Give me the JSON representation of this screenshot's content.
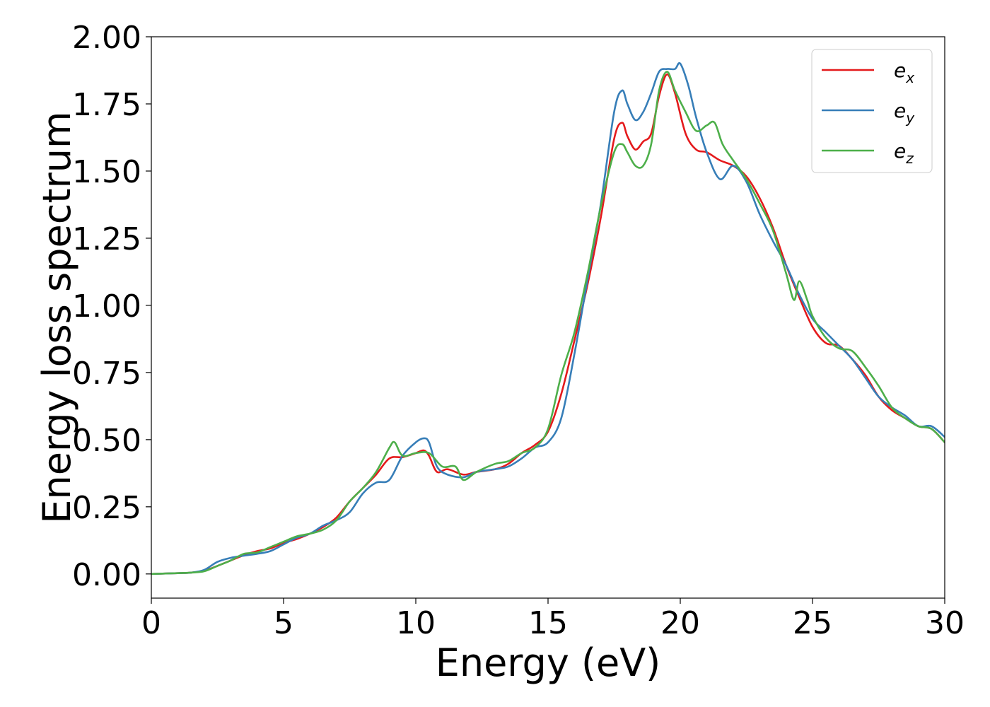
{
  "chart_data": {
    "type": "line",
    "title": "",
    "xlabel": "Energy (eV)",
    "ylabel": "Energy loss spectrum",
    "xlim": [
      0,
      30
    ],
    "ylim": [
      -0.09,
      2.0
    ],
    "xticks": [
      0,
      5,
      10,
      15,
      20,
      25,
      30
    ],
    "xtick_labels": [
      "0",
      "5",
      "10",
      "15",
      "20",
      "25",
      "30"
    ],
    "yticks": [
      0,
      0.25,
      0.5,
      0.75,
      1.0,
      1.25,
      1.5,
      1.75,
      2.0
    ],
    "ytick_labels": [
      "0.00",
      "0.25",
      "0.50",
      "0.75",
      "1.00",
      "1.25",
      "1.50",
      "1.75",
      "2.00"
    ],
    "grid": false,
    "legend_position": "top-right",
    "series": [
      {
        "name": "e_x",
        "label_base": "e",
        "label_sub": "x",
        "color": "#e41a1c",
        "x": [
          0,
          1,
          1.5,
          2,
          2.5,
          3,
          3.5,
          4,
          4.5,
          5,
          5.5,
          6,
          6.5,
          7,
          7.5,
          8,
          8.5,
          9,
          9.5,
          10,
          10.3,
          10.5,
          10.8,
          11.2,
          11.8,
          12.3,
          13,
          13.5,
          14,
          14.5,
          15,
          15.5,
          16,
          16.5,
          17,
          17.5,
          17.8,
          18,
          18.3,
          18.6,
          18.9,
          19.2,
          19.5,
          19.8,
          20.2,
          20.6,
          21,
          21.5,
          22,
          22.5,
          23,
          23.5,
          24,
          24.5,
          25,
          25.5,
          26,
          26.5,
          27,
          27.5,
          28,
          28.5,
          29,
          29.5,
          30
        ],
        "y": [
          0.0,
          0.003,
          0.005,
          0.012,
          0.03,
          0.05,
          0.07,
          0.085,
          0.095,
          0.115,
          0.13,
          0.15,
          0.175,
          0.21,
          0.27,
          0.32,
          0.37,
          0.43,
          0.435,
          0.45,
          0.46,
          0.44,
          0.38,
          0.39,
          0.37,
          0.38,
          0.39,
          0.41,
          0.45,
          0.48,
          0.53,
          0.67,
          0.87,
          1.08,
          1.33,
          1.62,
          1.68,
          1.63,
          1.58,
          1.61,
          1.64,
          1.78,
          1.86,
          1.79,
          1.64,
          1.58,
          1.57,
          1.54,
          1.52,
          1.48,
          1.4,
          1.29,
          1.15,
          1.03,
          0.92,
          0.86,
          0.85,
          0.8,
          0.74,
          0.66,
          0.61,
          0.58,
          0.55,
          0.54,
          0.49
        ]
      },
      {
        "name": "e_y",
        "label_base": "e",
        "label_sub": "y",
        "color": "#377eb8",
        "x": [
          0,
          1,
          1.5,
          2,
          2.5,
          3,
          3.5,
          4,
          4.5,
          5,
          5.5,
          6,
          6.5,
          7,
          7.5,
          8,
          8.5,
          9,
          9.5,
          10,
          10.3,
          10.5,
          10.8,
          11.2,
          11.8,
          12.3,
          13,
          13.5,
          14,
          14.5,
          15,
          15.5,
          16,
          16.5,
          17,
          17.5,
          17.8,
          18,
          18.3,
          18.6,
          18.9,
          19.2,
          19.5,
          19.8,
          20,
          20.3,
          20.6,
          21,
          21.5,
          22,
          22.5,
          23,
          23.5,
          24,
          24.5,
          25,
          25.5,
          26,
          26.5,
          27,
          27.5,
          28,
          28.5,
          29,
          29.5,
          30
        ],
        "y": [
          0.0,
          0.003,
          0.005,
          0.015,
          0.045,
          0.06,
          0.068,
          0.075,
          0.085,
          0.11,
          0.135,
          0.15,
          0.18,
          0.2,
          0.23,
          0.3,
          0.34,
          0.35,
          0.44,
          0.49,
          0.505,
          0.49,
          0.4,
          0.37,
          0.36,
          0.38,
          0.39,
          0.4,
          0.43,
          0.47,
          0.49,
          0.58,
          0.82,
          1.1,
          1.38,
          1.72,
          1.8,
          1.75,
          1.69,
          1.72,
          1.79,
          1.87,
          1.88,
          1.88,
          1.9,
          1.82,
          1.7,
          1.57,
          1.47,
          1.52,
          1.46,
          1.34,
          1.24,
          1.15,
          1.04,
          0.95,
          0.9,
          0.85,
          0.8,
          0.73,
          0.66,
          0.62,
          0.59,
          0.55,
          0.55,
          0.51
        ]
      },
      {
        "name": "e_z",
        "label_base": "e",
        "label_sub": "z",
        "color": "#4daf4a",
        "x": [
          0,
          1,
          1.5,
          2,
          2.5,
          3,
          3.5,
          4,
          4.5,
          5,
          5.5,
          6,
          6.5,
          7,
          7.5,
          8,
          8.5,
          9,
          9.2,
          9.5,
          10,
          10.5,
          11,
          11.5,
          11.8,
          12.3,
          13,
          13.5,
          14,
          14.5,
          15,
          15.5,
          16,
          16.5,
          17,
          17.5,
          17.8,
          18,
          18.3,
          18.6,
          18.9,
          19.2,
          19.5,
          19.8,
          20.2,
          20.6,
          21,
          21.3,
          21.6,
          22,
          22.5,
          23,
          23.5,
          24,
          24.3,
          24.5,
          24.8,
          25,
          25.5,
          26,
          26.5,
          27,
          27.5,
          28,
          28.5,
          29,
          29.5,
          30
        ],
        "y": [
          0.0,
          0.003,
          0.005,
          0.01,
          0.03,
          0.05,
          0.075,
          0.08,
          0.1,
          0.12,
          0.14,
          0.15,
          0.165,
          0.2,
          0.27,
          0.32,
          0.38,
          0.47,
          0.49,
          0.44,
          0.45,
          0.45,
          0.4,
          0.4,
          0.35,
          0.38,
          0.41,
          0.42,
          0.45,
          0.47,
          0.54,
          0.74,
          0.9,
          1.12,
          1.37,
          1.57,
          1.6,
          1.57,
          1.52,
          1.52,
          1.6,
          1.8,
          1.87,
          1.8,
          1.72,
          1.65,
          1.67,
          1.68,
          1.6,
          1.54,
          1.47,
          1.38,
          1.28,
          1.12,
          1.02,
          1.09,
          1.02,
          0.96,
          0.88,
          0.84,
          0.83,
          0.77,
          0.7,
          0.62,
          0.58,
          0.55,
          0.54,
          0.49
        ]
      }
    ]
  }
}
